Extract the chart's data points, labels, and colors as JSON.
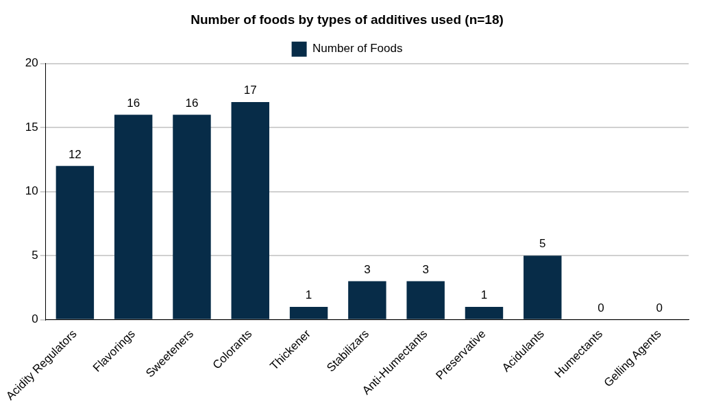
{
  "chart_data": {
    "type": "bar",
    "title": "Number of foods by types of additives used (n=18)",
    "categories": [
      "Acidity Regulators",
      "Flavorings",
      "Sweeteners",
      "Colorants",
      "Thickener",
      "Stabilizars",
      "Anti-Humectants",
      "Preservative",
      "Acidulants",
      "Humectants",
      "Gelling Agents"
    ],
    "series": [
      {
        "name": "Number of Foods",
        "color": "#072c48",
        "values": [
          12,
          16,
          16,
          17,
          1,
          3,
          3,
          1,
          5,
          0,
          0
        ]
      }
    ],
    "ylim": [
      0,
      20
    ],
    "yticks": [
      0,
      5,
      10,
      15,
      20
    ],
    "grid": "y",
    "legend": "top",
    "data_labels": true
  }
}
